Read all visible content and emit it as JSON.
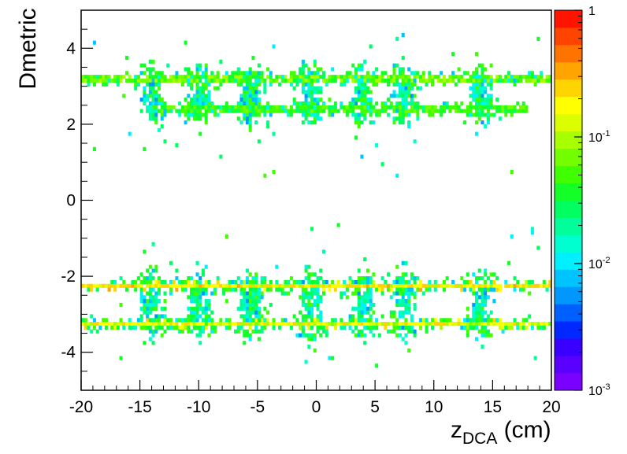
{
  "chart_data": {
    "type": "heatmap",
    "xlabel": "z",
    "xlabel_sub": "DCA",
    "xlabel_unit": " (cm)",
    "ylabel": "Dmetric",
    "xlim": [
      -20,
      20
    ],
    "ylim": [
      -5,
      5
    ],
    "x_ticks": [
      "-20",
      "-15",
      "-10",
      "-5",
      "0",
      "5",
      "10",
      "15",
      "20"
    ],
    "y_ticks": [
      "-4",
      "-2",
      "0",
      "2",
      "4"
    ],
    "color_scale": {
      "type": "log",
      "min": 0.001,
      "max": 1,
      "tick_labels": [
        {
          "base": "1",
          "exp": ""
        },
        {
          "base": "10",
          "exp": "-1"
        },
        {
          "base": "10",
          "exp": "-2"
        },
        {
          "base": "10",
          "exp": "-3"
        }
      ],
      "palette": [
        "#7a00ff",
        "#5a00ff",
        "#3a00ff",
        "#0028ff",
        "#0060ff",
        "#0098ff",
        "#00c4ff",
        "#00f0ff",
        "#00ffd0",
        "#00ff9a",
        "#00ff60",
        "#14ff28",
        "#40ff00",
        "#74ff00",
        "#a8ff00",
        "#dcff00",
        "#ffff00",
        "#ffd400",
        "#ffa400",
        "#ff7400",
        "#ff4400",
        "#ff1400"
      ]
    },
    "bands": [
      {
        "y": -3.25,
        "x_range": [
          -20,
          20
        ],
        "intensity": 0.15
      },
      {
        "y": -2.25,
        "x_range": [
          -20,
          20
        ],
        "intensity": 0.2
      },
      {
        "y": 2.4,
        "x_range": [
          -14,
          18
        ],
        "intensity": 0.05
      },
      {
        "y": 3.2,
        "x_range": [
          -20,
          20
        ],
        "intensity": 0.07
      }
    ],
    "clusters_x": [
      -14,
      -10,
      -5.5,
      -0.5,
      4,
      7.5,
      14
    ]
  }
}
